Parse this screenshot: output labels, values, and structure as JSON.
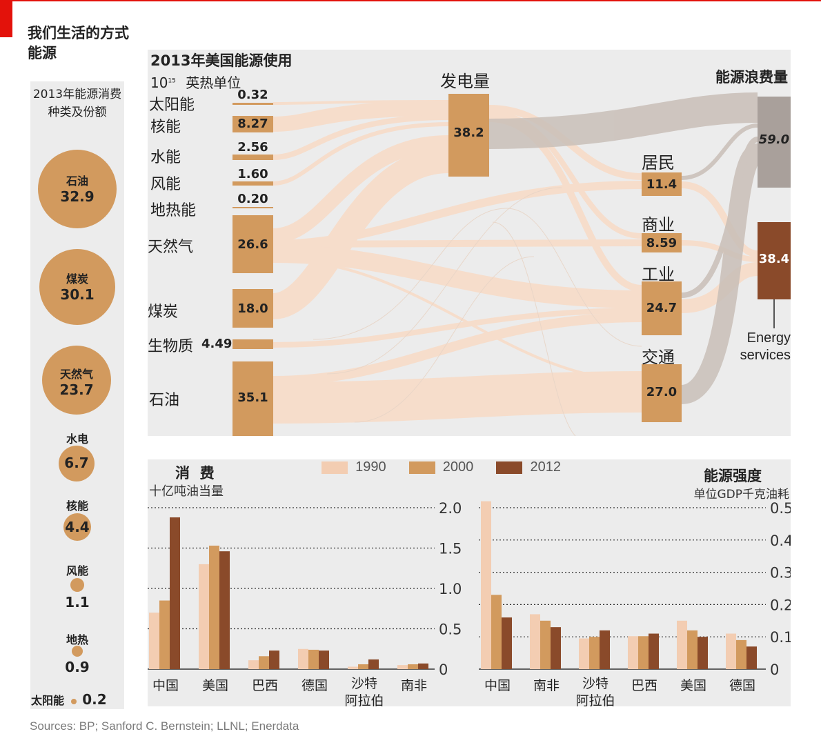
{
  "header": {
    "title_line1": "我们生活的方式",
    "title_line2": "能源"
  },
  "left_panel": {
    "title": "2013年能源消费种类及份额",
    "items": [
      {
        "name": "石油",
        "value": "32.9"
      },
      {
        "name": "煤炭",
        "value": "30.1"
      },
      {
        "name": "天然气",
        "value": "23.7"
      },
      {
        "name": "水电",
        "value": "6.7"
      },
      {
        "name": "核能",
        "value": "4.4"
      },
      {
        "name": "风能",
        "value": "1.1"
      },
      {
        "name": "地热",
        "value": "0.9"
      },
      {
        "name": "太阳能",
        "value": "0.2"
      }
    ]
  },
  "sankey": {
    "title": "2013年美国能源使用",
    "unit_base": "10",
    "unit_exp": "15",
    "unit_text": "英热单位",
    "sources": [
      {
        "name": "太阳能",
        "value": "0.32"
      },
      {
        "name": "核能",
        "value": "8.27"
      },
      {
        "name": "水能",
        "value": "2.56"
      },
      {
        "name": "风能",
        "value": "1.60"
      },
      {
        "name": "地热能",
        "value": "0.20"
      },
      {
        "name": "天然气",
        "value": "26.6"
      },
      {
        "name": "煤炭",
        "value": "18.0"
      },
      {
        "name": "生物质",
        "value": "4.49"
      },
      {
        "name": "石油",
        "value": "35.1"
      }
    ],
    "electricity": {
      "name": "发电量",
      "value": "38.2"
    },
    "sectors": [
      {
        "name": "居民",
        "value": "11.4"
      },
      {
        "name": "商业",
        "value": "8.59"
      },
      {
        "name": "工业",
        "value": "24.7"
      },
      {
        "name": "交通",
        "value": "27.0"
      }
    ],
    "waste": {
      "name": "能源浪费量",
      "value": "59.0"
    },
    "services": {
      "value": "38.4",
      "name_line1": "Energy",
      "name_line2": "services"
    }
  },
  "legend": [
    "1990",
    "2000",
    "2012"
  ],
  "colors": {
    "y1990": "#f3cdb2",
    "y2000": "#d29a5e",
    "y2012": "#8a4a2a",
    "waste": "#a9a09b",
    "flow": "#f6ddcb",
    "accent": "#e3120b"
  },
  "chart_data": [
    {
      "type": "bar",
      "title": "消  费",
      "ylabel": "十亿吨油当量",
      "categories": [
        "中国",
        "美国",
        "巴西",
        "德国",
        "沙特阿拉伯",
        "南非"
      ],
      "series": [
        {
          "name": "1990",
          "values": [
            0.7,
            1.3,
            0.11,
            0.25,
            0.03,
            0.05
          ]
        },
        {
          "name": "2000",
          "values": [
            0.85,
            1.53,
            0.16,
            0.24,
            0.06,
            0.06
          ]
        },
        {
          "name": "2012",
          "values": [
            1.88,
            1.46,
            0.23,
            0.23,
            0.12,
            0.07
          ]
        }
      ],
      "ylim": [
        0,
        2.0
      ],
      "yticks": [
        "0",
        "0.5",
        "1.0",
        "1.5",
        "2.0"
      ]
    },
    {
      "type": "bar",
      "title": "能源强度",
      "ylabel": "单位GDP千克油耗",
      "categories": [
        "中国",
        "南非",
        "沙特阿拉伯",
        "巴西",
        "美国",
        "德国"
      ],
      "series": [
        {
          "name": "1990",
          "values": [
            0.52,
            0.17,
            0.095,
            0.102,
            0.15,
            0.11
          ]
        },
        {
          "name": "2000",
          "values": [
            0.23,
            0.15,
            0.1,
            0.102,
            0.12,
            0.09
          ]
        },
        {
          "name": "2012",
          "values": [
            0.16,
            0.13,
            0.12,
            0.11,
            0.1,
            0.07
          ]
        }
      ],
      "ylim": [
        0,
        0.5
      ],
      "yticks": [
        "0",
        "0.1",
        "0.2",
        "0.3",
        "0.4",
        "0.5"
      ]
    }
  ],
  "footer": {
    "sources": "Sources: BP; Sanford C. Bernstein; LLNL; Enerdata"
  }
}
